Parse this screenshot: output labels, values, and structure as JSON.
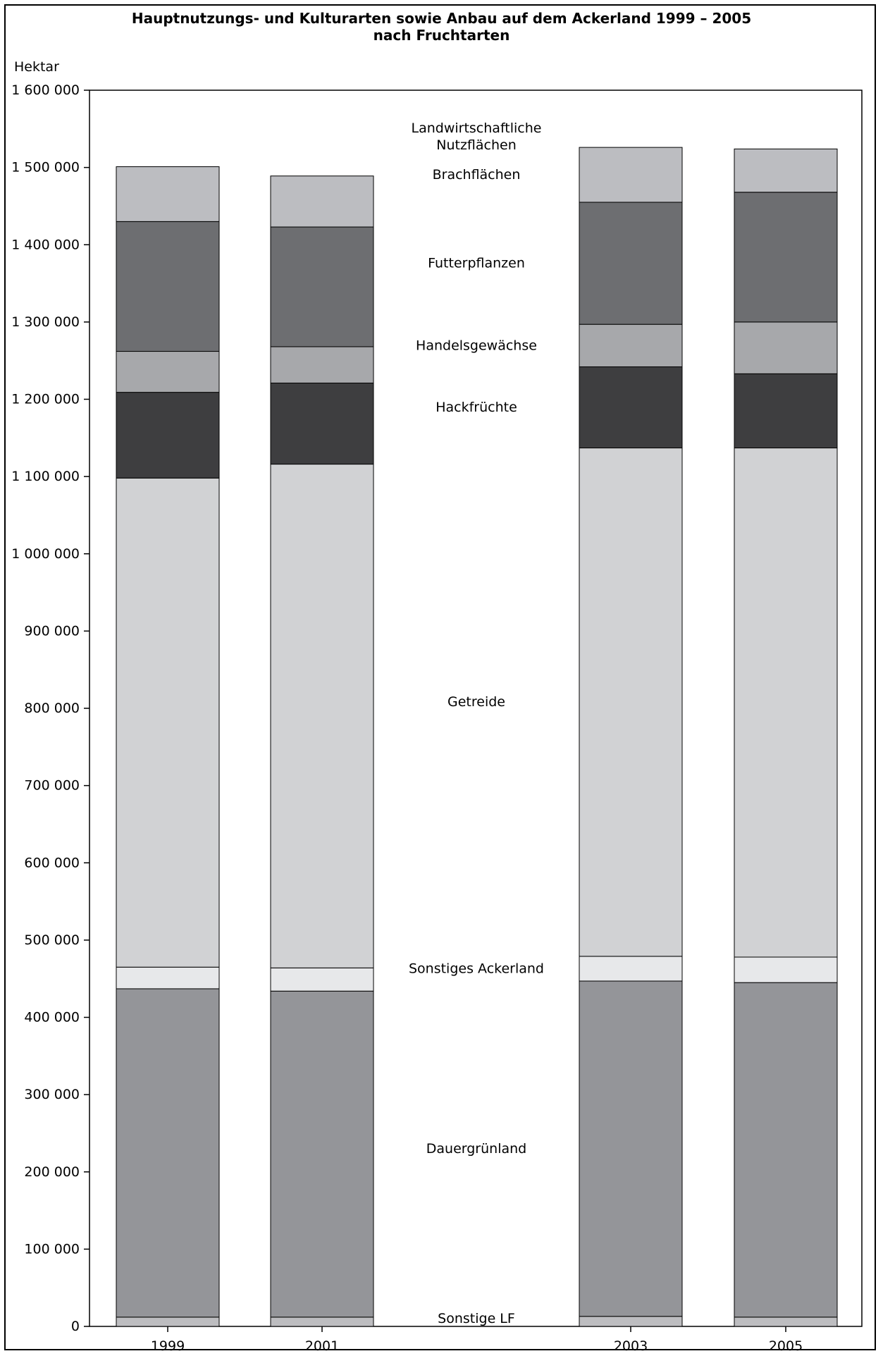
{
  "chart_data": {
    "type": "bar",
    "stacked": true,
    "title": "Hauptnutzungs- und Kulturarten sowie Anbau auf dem  Ackerland 1999 – 2005\nnach Fruchtarten",
    "ylabel": "Hektar",
    "xlabel": "",
    "ylim": [
      0,
      1600000
    ],
    "yticks": [
      0,
      100000,
      200000,
      300000,
      400000,
      500000,
      600000,
      700000,
      800000,
      900000,
      1000000,
      1100000,
      1200000,
      1300000,
      1400000,
      1500000,
      1600000
    ],
    "ytick_labels": [
      "0",
      "100 000",
      "200 000",
      "300 000",
      "400 000",
      "500 000",
      "600 000",
      "700 000",
      "800 000",
      "900 000",
      "1 000 000",
      "1 100 000",
      "1 200 000",
      "1 300 000",
      "1 400 000",
      "1 500 000",
      "1 600 000"
    ],
    "categories": [
      "1999",
      "2001",
      "2003",
      "2005"
    ],
    "grid": false,
    "series": [
      {
        "name": "Sonstige LF",
        "color": "#bdbdc0",
        "values": [
          12000,
          12000,
          13000,
          12000
        ]
      },
      {
        "name": "Dauergrünland",
        "color": "#949599",
        "values": [
          425000,
          422000,
          434000,
          433000
        ]
      },
      {
        "name": "Sonstiges Ackerland",
        "color": "#e7e8ea",
        "values": [
          28000,
          30000,
          32000,
          33000
        ]
      },
      {
        "name": "Getreide",
        "color": "#d1d2d4",
        "values": [
          633000,
          652000,
          658000,
          659000
        ]
      },
      {
        "name": "Hackfrüchte",
        "color": "#3e3e40",
        "values": [
          111000,
          105000,
          105000,
          96000
        ]
      },
      {
        "name": "Handelsgewächse",
        "color": "#a7a8ab",
        "values": [
          53000,
          47000,
          55000,
          67000
        ]
      },
      {
        "name": "Futterpflanzen",
        "color": "#6d6e71",
        "values": [
          168000,
          155000,
          158000,
          168000
        ]
      },
      {
        "name": "Brachflächen",
        "color": "#bcbdc1",
        "values": [
          71000,
          66000,
          71000,
          56000
        ]
      }
    ],
    "series_label_annotations": [
      "Landwirtschaftliche\nNutzflächen",
      "Brachflächen",
      "Futterpflanzen",
      "Handelsgewächse",
      "Hackfrüchte",
      "Getreide",
      "Sonstiges Ackerland",
      "Dauergrünland",
      "Sonstige LF"
    ]
  }
}
